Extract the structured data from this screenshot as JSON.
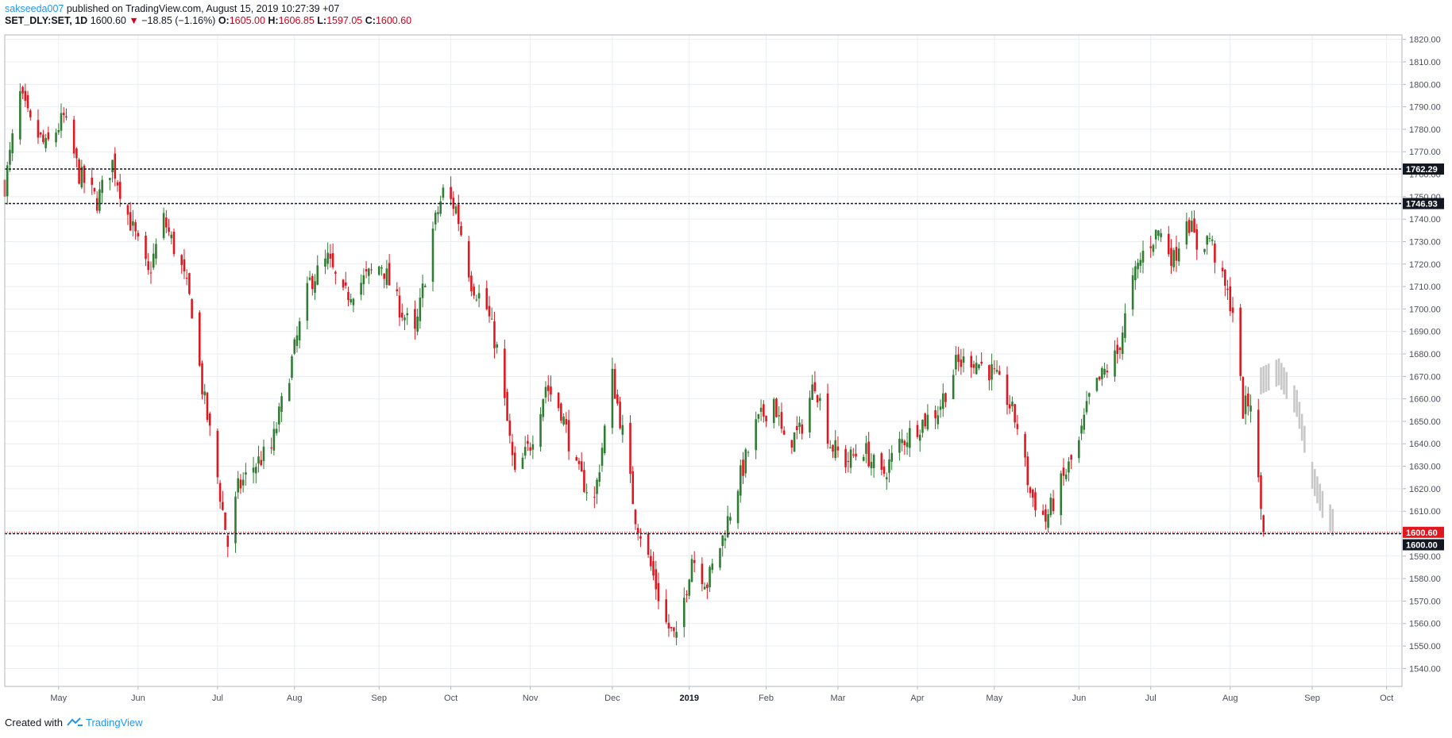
{
  "header": {
    "author": "sakseeda007",
    "published": " published on TradingView.com, August 15, 2019 10:27:39 +07",
    "symbol": "SET_DLY:SET, 1D",
    "last": "1600.60",
    "arrow": "▼",
    "change": "−18.85 (−1.16%)",
    "o_label": "O:",
    "o": "1605.00",
    "h_label": "H:",
    "h": "1606.85",
    "l_label": "L:",
    "l": "1597.05",
    "c_label": "C:",
    "c": "1600.60"
  },
  "footer": {
    "created_with": "Created with",
    "brand": "TradingView"
  },
  "colors": {
    "up": "#2e7d32",
    "down": "#e0171f",
    "ghost": "#c8c8c8",
    "grid": "#e9eef2",
    "axis": "#b2b5be",
    "level": "#131722",
    "last_tag": "#e0171f",
    "level_tag": "#131722"
  },
  "chart_data": {
    "type": "candlestick",
    "y_axis": {
      "ticks": [
        1540,
        1550,
        1560,
        1570,
        1580,
        1590,
        1600,
        1610,
        1620,
        1630,
        1640,
        1650,
        1660,
        1670,
        1680,
        1690,
        1700,
        1710,
        1720,
        1730,
        1740,
        1750,
        1760,
        1770,
        1780,
        1790,
        1800,
        1810,
        1820
      ],
      "tick_labels": [
        "1540.00",
        "1550.00",
        "1560.00",
        "1570.00",
        "1580.00",
        "1590.00",
        "1600.00",
        "1610.00",
        "1620.00",
        "1630.00",
        "1640.00",
        "1650.00",
        "1660.00",
        "1670.00",
        "1680.00",
        "1690.00",
        "1700.00",
        "1710.00",
        "1720.00",
        "1730.00",
        "1740.00",
        "1750.00",
        "1760.00",
        "1770.00",
        "1780.00",
        "1790.00",
        "1800.00",
        "1810.00",
        "1820.00"
      ],
      "range": [
        1532,
        1822
      ]
    },
    "x_axis": {
      "range": [
        "2018-04-10",
        "2019-10-07"
      ],
      "ticks": [
        {
          "date": "2018-05-01",
          "label": "May"
        },
        {
          "date": "2018-06-01",
          "label": "Jun"
        },
        {
          "date": "2018-07-02",
          "label": "Jul"
        },
        {
          "date": "2018-08-01",
          "label": "Aug"
        },
        {
          "date": "2018-09-03",
          "label": "Sep"
        },
        {
          "date": "2018-10-01",
          "label": "Oct"
        },
        {
          "date": "2018-11-01",
          "label": "Nov"
        },
        {
          "date": "2018-12-03",
          "label": "Dec"
        },
        {
          "date": "2019-01-02",
          "label": "2019",
          "bold": true
        },
        {
          "date": "2019-02-01",
          "label": "Feb"
        },
        {
          "date": "2019-03-01",
          "label": "Mar"
        },
        {
          "date": "2019-04-01",
          "label": "Apr"
        },
        {
          "date": "2019-05-01",
          "label": "May"
        },
        {
          "date": "2019-06-03",
          "label": "Jun"
        },
        {
          "date": "2019-07-01",
          "label": "Jul"
        },
        {
          "date": "2019-08-01",
          "label": "Aug"
        },
        {
          "date": "2019-09-02",
          "label": "Sep"
        },
        {
          "date": "2019-10-01",
          "label": "Oct"
        }
      ]
    },
    "levels": [
      {
        "value": 1762.29,
        "label": "1762.29",
        "style": "dashed"
      },
      {
        "value": 1746.93,
        "label": "1746.93",
        "style": "dashed"
      },
      {
        "value": 1600.0,
        "label": "1600.00",
        "style": "dashed"
      }
    ],
    "last_price": {
      "value": 1600.6,
      "label": "1600.60"
    },
    "close_anchors": [
      [
        "2018-04-10",
        1755
      ],
      [
        "2018-04-16",
        1795
      ],
      [
        "2018-04-20",
        1782
      ],
      [
        "2018-04-26",
        1772
      ],
      [
        "2018-05-03",
        1785
      ],
      [
        "2018-05-09",
        1760
      ],
      [
        "2018-05-16",
        1748
      ],
      [
        "2018-05-22",
        1765
      ],
      [
        "2018-05-28",
        1742
      ],
      [
        "2018-06-05",
        1715
      ],
      [
        "2018-06-11",
        1740
      ],
      [
        "2018-06-18",
        1718
      ],
      [
        "2018-06-22",
        1700
      ],
      [
        "2018-06-26",
        1665
      ],
      [
        "2018-07-02",
        1625
      ],
      [
        "2018-07-06",
        1595
      ],
      [
        "2018-07-10",
        1620
      ],
      [
        "2018-07-16",
        1630
      ],
      [
        "2018-07-23",
        1638
      ],
      [
        "2018-07-30",
        1672
      ],
      [
        "2018-08-07",
        1712
      ],
      [
        "2018-08-14",
        1722
      ],
      [
        "2018-08-20",
        1705
      ],
      [
        "2018-08-27",
        1712
      ],
      [
        "2018-09-04",
        1720
      ],
      [
        "2018-09-10",
        1703
      ],
      [
        "2018-09-17",
        1688
      ],
      [
        "2018-09-24",
        1735
      ],
      [
        "2018-09-28",
        1752
      ],
      [
        "2018-10-03",
        1745
      ],
      [
        "2018-10-09",
        1712
      ],
      [
        "2018-10-15",
        1700
      ],
      [
        "2018-10-19",
        1682
      ],
      [
        "2018-10-26",
        1625
      ],
      [
        "2018-11-01",
        1640
      ],
      [
        "2018-11-07",
        1666
      ],
      [
        "2018-11-13",
        1655
      ],
      [
        "2018-11-19",
        1628
      ],
      [
        "2018-11-26",
        1615
      ],
      [
        "2018-12-03",
        1670
      ],
      [
        "2018-12-07",
        1645
      ],
      [
        "2018-12-12",
        1608
      ],
      [
        "2018-12-18",
        1585
      ],
      [
        "2018-12-24",
        1560
      ],
      [
        "2018-12-28",
        1552
      ],
      [
        "2019-01-03",
        1590
      ],
      [
        "2019-01-09",
        1578
      ],
      [
        "2019-01-15",
        1598
      ],
      [
        "2019-01-21",
        1622
      ],
      [
        "2019-01-28",
        1648
      ],
      [
        "2019-02-04",
        1660
      ],
      [
        "2019-02-08",
        1640
      ],
      [
        "2019-02-14",
        1645
      ],
      [
        "2019-02-20",
        1668
      ],
      [
        "2019-02-26",
        1640
      ],
      [
        "2019-03-04",
        1632
      ],
      [
        "2019-03-11",
        1638
      ],
      [
        "2019-03-18",
        1625
      ],
      [
        "2019-03-25",
        1640
      ],
      [
        "2019-04-01",
        1648
      ],
      [
        "2019-04-09",
        1655
      ],
      [
        "2019-04-16",
        1675
      ],
      [
        "2019-04-22",
        1678
      ],
      [
        "2019-04-30",
        1672
      ],
      [
        "2019-05-06",
        1660
      ],
      [
        "2019-05-10",
        1648
      ],
      [
        "2019-05-15",
        1618
      ],
      [
        "2019-05-21",
        1606
      ],
      [
        "2019-05-27",
        1622
      ],
      [
        "2019-06-03",
        1640
      ],
      [
        "2019-06-07",
        1660
      ],
      [
        "2019-06-13",
        1672
      ],
      [
        "2019-06-18",
        1680
      ],
      [
        "2019-06-24",
        1712
      ],
      [
        "2019-06-28",
        1725
      ],
      [
        "2019-07-04",
        1735
      ],
      [
        "2019-07-10",
        1722
      ],
      [
        "2019-07-15",
        1742
      ],
      [
        "2019-07-19",
        1728
      ],
      [
        "2019-07-24",
        1732
      ],
      [
        "2019-07-29",
        1712
      ],
      [
        "2019-08-02",
        1700
      ],
      [
        "2019-08-06",
        1655
      ],
      [
        "2019-08-09",
        1660
      ],
      [
        "2019-08-12",
        1622
      ],
      [
        "2019-08-14",
        1600.6
      ]
    ],
    "ghost_anchors": [
      [
        "2019-08-13",
        1668
      ],
      [
        "2019-08-20",
        1672
      ],
      [
        "2019-08-27",
        1658
      ],
      [
        "2019-09-02",
        1626
      ],
      [
        "2019-09-06",
        1613
      ],
      [
        "2019-09-10",
        1605
      ]
    ]
  }
}
